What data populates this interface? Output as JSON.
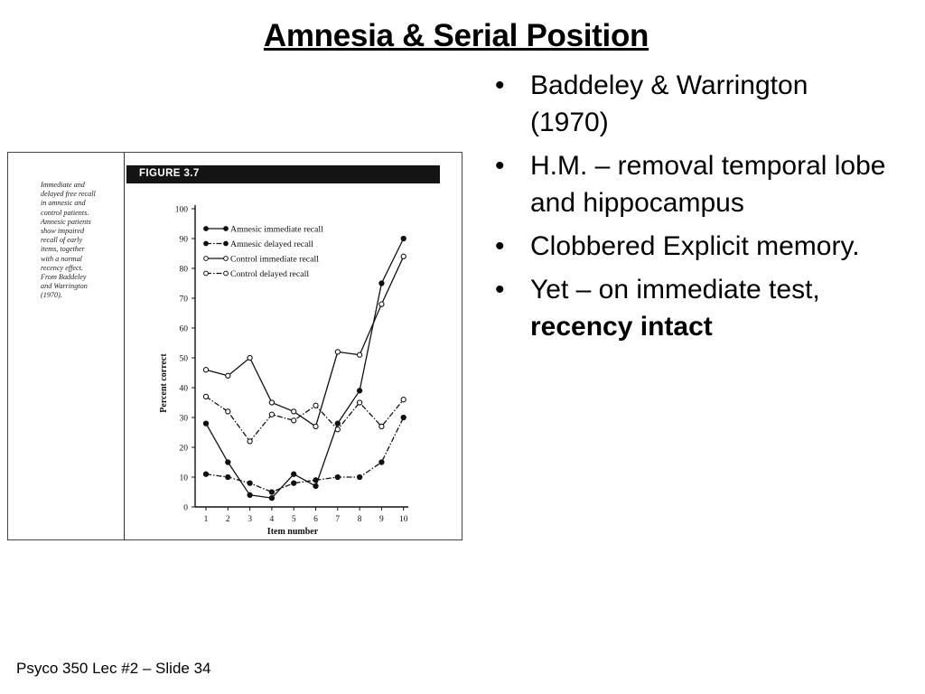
{
  "slide": {
    "title": "Amnesia & Serial Position",
    "footer": "Psyco 350 Lec #2 – Slide 34",
    "bullet_marker": "•",
    "bullets": [
      {
        "text": "Baddeley & Warrington (1970)"
      },
      {
        "text": "H.M. – removal temporal lobe and hippocampus"
      },
      {
        "text": "Clobbered Explicit memory."
      },
      {
        "text": "Yet – on immediate test, ",
        "bold": "recency intact"
      }
    ]
  },
  "figure": {
    "label": "FIGURE 3.7",
    "caption_lines": [
      "Immediate and",
      "delayed free recall",
      "in amnesic and",
      "control patients.",
      "Amnesic patients",
      "show impaired",
      "recall of early",
      "items, together",
      "with a normal",
      "recency effect.",
      "From Baddeley",
      "and Warrington",
      "(1970)."
    ]
  },
  "chart_data": {
    "type": "line",
    "x": [
      1,
      2,
      3,
      4,
      5,
      6,
      7,
      8,
      9,
      10
    ],
    "xlabel": "Item number",
    "ylabel": "Percent correct",
    "ylim": [
      0,
      100
    ],
    "yticks": [
      0,
      10,
      20,
      30,
      40,
      50,
      60,
      70,
      80,
      90,
      100
    ],
    "legend_position": "top-left",
    "series": [
      {
        "name": "Amnesic immediate recall",
        "marker": "filled",
        "dash": "solid",
        "values": [
          28,
          15,
          4,
          3,
          11,
          7,
          28,
          39,
          75,
          90
        ]
      },
      {
        "name": "Amnesic delayed recall",
        "marker": "filled",
        "dash": "dashdot",
        "values": [
          11,
          10,
          8,
          5,
          8,
          9,
          10,
          10,
          15,
          30
        ]
      },
      {
        "name": "Control immediate recall",
        "marker": "open",
        "dash": "solid",
        "values": [
          46,
          44,
          50,
          35,
          32,
          27,
          52,
          51,
          68,
          84
        ]
      },
      {
        "name": "Control delayed recall",
        "marker": "open",
        "dash": "dashdot",
        "values": [
          37,
          32,
          22,
          31,
          29,
          34,
          26,
          35,
          27,
          36
        ]
      }
    ]
  }
}
